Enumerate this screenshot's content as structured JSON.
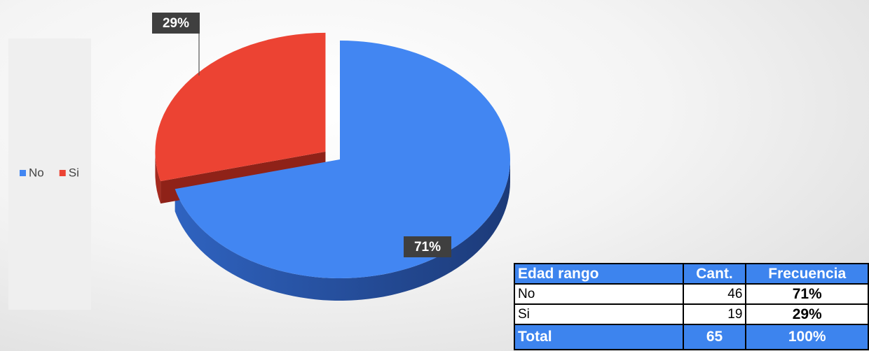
{
  "chart_data": {
    "type": "pie",
    "categories": [
      "No",
      "Si"
    ],
    "values": [
      71,
      29
    ],
    "value_labels": [
      "71%",
      "29%"
    ],
    "colors": [
      "#4286f2",
      "#ec4333"
    ],
    "legend": "left"
  },
  "table": {
    "header": [
      "Edad rango",
      "Cant.",
      "Frecuencia"
    ],
    "rows": [
      [
        "No",
        "46",
        "71%"
      ],
      [
        "Si",
        "19",
        "29%"
      ]
    ],
    "total": [
      "Total",
      "65",
      "100%"
    ]
  }
}
